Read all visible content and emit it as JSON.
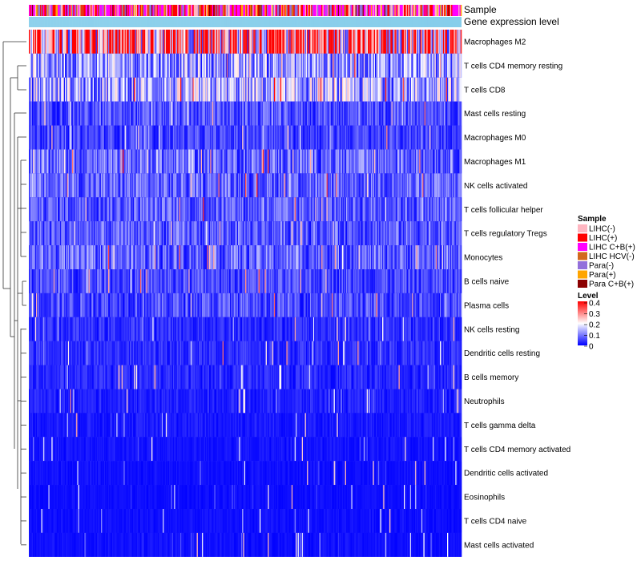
{
  "chart_data": {
    "type": "heatmap",
    "title": "",
    "n_samples": 420,
    "annotations": [
      {
        "name": "Sample",
        "label": "Sample"
      },
      {
        "name": "Gene expression level",
        "label": "Gene expression level"
      }
    ],
    "rows": [
      {
        "name": "Macrophages M2",
        "mean": 0.3
      },
      {
        "name": "T cells CD4 memory resting",
        "mean": 0.12
      },
      {
        "name": "T cells CD8",
        "mean": 0.13
      },
      {
        "name": "Mast cells resting",
        "mean": 0.06
      },
      {
        "name": "Macrophages M0",
        "mean": 0.05
      },
      {
        "name": "Macrophages M1",
        "mean": 0.08
      },
      {
        "name": "NK cells activated",
        "mean": 0.075
      },
      {
        "name": "T cells follicular helper",
        "mean": 0.07
      },
      {
        "name": "T cells regulatory  Tregs",
        "mean": 0.07
      },
      {
        "name": "Monocytes",
        "mean": 0.075
      },
      {
        "name": "B cells naive",
        "mean": 0.055
      },
      {
        "name": "Plasma cells",
        "mean": 0.06
      },
      {
        "name": "NK cells resting",
        "mean": 0.035
      },
      {
        "name": "Dendritic cells resting",
        "mean": 0.035
      },
      {
        "name": "B cells memory",
        "mean": 0.03
      },
      {
        "name": "Neutrophils",
        "mean": 0.025
      },
      {
        "name": "T cells gamma delta",
        "mean": 0.02
      },
      {
        "name": "T cells CD4 memory activated",
        "mean": 0.015
      },
      {
        "name": "Dendritic cells activated",
        "mean": 0.012
      },
      {
        "name": "Eosinophils",
        "mean": 0.01
      },
      {
        "name": "T cells CD4 naive",
        "mean": 0.012
      },
      {
        "name": "Mast cells activated",
        "mean": 0.012
      }
    ],
    "legend_sample": {
      "title": "Sample",
      "items": [
        {
          "label": "LIHC(-)",
          "color": "#FFB6C1"
        },
        {
          "label": "LIHC(+)",
          "color": "#FF0000"
        },
        {
          "label": "LIHC C+B(+)",
          "color": "#FF00FF"
        },
        {
          "label": "LIHC HCV(-)",
          "color": "#D2691E"
        },
        {
          "label": "Para(-)",
          "color": "#9370DB"
        },
        {
          "label": "Para(+)",
          "color": "#FFA500"
        },
        {
          "label": "Para C+B(+)",
          "color": "#8B0000"
        }
      ]
    },
    "legend_level": {
      "title": "Level",
      "ticks": [
        "0.4",
        "0.3",
        "0.2",
        "0.1",
        "0"
      ],
      "range": [
        0,
        0.4
      ],
      "colors": {
        "low": "#0000FF",
        "mid": "#FFFFFF",
        "high": "#FF0000"
      }
    },
    "expression_bar": {
      "color_low": "#87CEEB",
      "color_high": "#A8DCF0"
    }
  }
}
